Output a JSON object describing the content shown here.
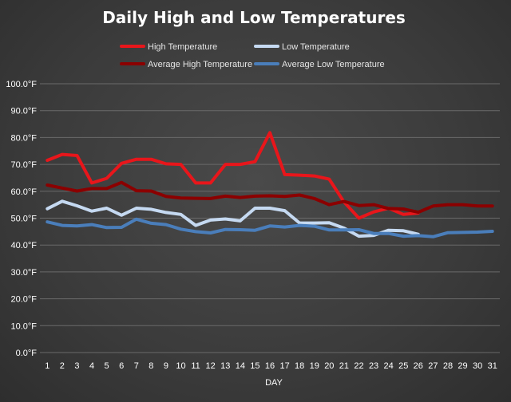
{
  "chart_data": {
    "type": "line",
    "title": "Daily High and Low Temperatures",
    "xlabel": "DAY",
    "ylabel": "",
    "ylim": [
      0,
      100
    ],
    "y_ticks": [
      "0.0°F",
      "10.0°F",
      "20.0°F",
      "30.0°F",
      "40.0°F",
      "50.0°F",
      "60.0°F",
      "70.0°F",
      "80.0°F",
      "90.0°F",
      "100.0°F"
    ],
    "categories": [
      "1",
      "2",
      "3",
      "4",
      "5",
      "6",
      "7",
      "8",
      "9",
      "10",
      "11",
      "12",
      "13",
      "14",
      "15",
      "16",
      "17",
      "18",
      "19",
      "20",
      "21",
      "22",
      "23",
      "24",
      "25",
      "26",
      "27",
      "28",
      "29",
      "30",
      "31"
    ],
    "grid": true,
    "legend_position": "top",
    "series": [
      {
        "name": "High Temperature",
        "color": "#e8161b",
        "values": [
          71.5,
          73.7,
          73.3,
          63.1,
          64.8,
          70.4,
          71.9,
          71.9,
          70.2,
          70.0,
          63.1,
          63.1,
          70.0,
          70.0,
          71.0,
          81.8,
          66.2,
          66.0,
          65.7,
          64.5,
          56.0,
          50.0,
          52.3,
          53.7,
          51.4,
          51.9,
          null,
          null,
          null,
          null,
          null
        ]
      },
      {
        "name": "Low Temperature",
        "color": "#c5d9f1",
        "values": [
          53.5,
          56.3,
          54.6,
          52.6,
          53.7,
          51.1,
          53.7,
          53.3,
          52.1,
          51.4,
          47.3,
          49.3,
          49.7,
          49.0,
          53.7,
          53.7,
          52.8,
          48.2,
          48.2,
          48.3,
          46.3,
          43.3,
          43.6,
          45.5,
          45.3,
          44.0,
          null,
          null,
          null,
          null,
          null
        ]
      },
      {
        "name": "Average High Temperature",
        "color": "#8b0000",
        "values": [
          62.3,
          61.2,
          60.1,
          61.0,
          61.0,
          63.3,
          60.2,
          60.1,
          58.1,
          57.5,
          57.4,
          57.3,
          58.2,
          57.7,
          58.2,
          58.3,
          58.1,
          58.6,
          57.3,
          55.0,
          56.2,
          54.7,
          55.0,
          53.6,
          53.4,
          52.2,
          54.5,
          55.0,
          55.0,
          54.5,
          54.5
        ]
      },
      {
        "name": "Average Low Temperature",
        "color": "#4a7ebb",
        "values": [
          48.6,
          47.3,
          47.1,
          47.6,
          46.5,
          46.6,
          49.6,
          48.1,
          47.6,
          45.9,
          45.0,
          44.5,
          45.8,
          45.7,
          45.5,
          47.1,
          46.7,
          47.3,
          47.0,
          45.6,
          45.6,
          45.7,
          44.3,
          44.3,
          43.3,
          43.5,
          43.1,
          44.6,
          44.7,
          44.8,
          45.1
        ]
      }
    ]
  }
}
